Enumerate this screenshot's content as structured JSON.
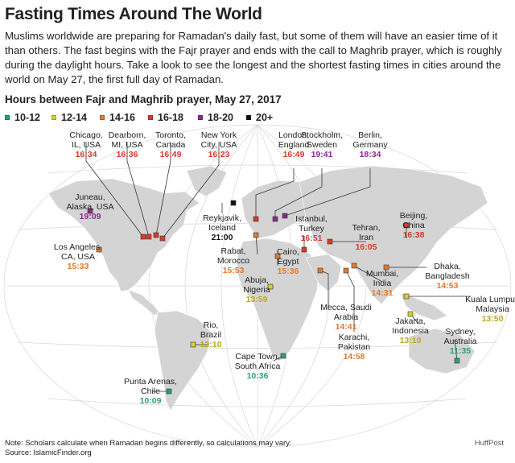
{
  "title": "Fasting Times Around The World",
  "intro": "Muslims worldwide are preparing for Ramadan's daily fast, but some of them will have an easier time of it than others. The fast begins with the Fajr prayer and ends with the call to Maghrib prayer, which is roughly during the daylight hours. Take a look to see the longest and the shortest fasting times in cities around the world on May 27, the first full day of Ramadan.",
  "subhead": "Hours between Fajr and Maghrib prayer, May 27, 2017",
  "legend": [
    {
      "label": "10-12",
      "color": "#2aa07a"
    },
    {
      "label": "12-14",
      "color": "#d6d02a"
    },
    {
      "label": "14-16",
      "color": "#e07b2f"
    },
    {
      "label": "16-18",
      "color": "#d93a2b"
    },
    {
      "label": "18-20",
      "color": "#8a2b8f"
    },
    {
      "label": "20+",
      "color": "#111111"
    }
  ],
  "cities": [
    {
      "name": "Chicago,",
      "name2": "IL, USA",
      "time": "16:34",
      "color": "#d93a2b"
    },
    {
      "name": "Dearborn,",
      "name2": "MI, USA",
      "time": "16:36",
      "color": "#d93a2b"
    },
    {
      "name": "Toronto,",
      "name2": "Canada",
      "time": "16:49",
      "color": "#d93a2b"
    },
    {
      "name": "New York",
      "name2": "City, USA",
      "time": "16:23",
      "color": "#d93a2b"
    },
    {
      "name": "Juneau,",
      "name2": "Alaska, USA",
      "time": "19:09",
      "color": "#8a2b8f"
    },
    {
      "name": "Los Angeles,",
      "name2": "CA, USA",
      "time": "15:33",
      "color": "#e07b2f"
    },
    {
      "name": "London,",
      "name2": "England",
      "time": "16:49",
      "color": "#d93a2b"
    },
    {
      "name": "Stockholm,",
      "name2": "Sweden",
      "time": "19:41",
      "color": "#8a2b8f"
    },
    {
      "name": "Berlin,",
      "name2": "Germany",
      "time": "18:34",
      "color": "#8a2b8f"
    },
    {
      "name": "Reykjavik,",
      "name2": "Iceland",
      "time": "21:00",
      "color": "#111111"
    },
    {
      "name": "Istanbul,",
      "name2": "Turkey",
      "time": "16:51",
      "color": "#d93a2b"
    },
    {
      "name": "Tehran,",
      "name2": "Iran",
      "time": "16:05",
      "color": "#d93a2b"
    },
    {
      "name": "Beijing,",
      "name2": "China",
      "time": "16:38",
      "color": "#d93a2b"
    },
    {
      "name": "Rabat,",
      "name2": "Morocco",
      "time": "15:53",
      "color": "#e07b2f"
    },
    {
      "name": "Cairo,",
      "name2": "Egypt",
      "time": "15:36",
      "color": "#e07b2f"
    },
    {
      "name": "Dhaka,",
      "name2": "Bangladesh",
      "time": "14:53",
      "color": "#e07b2f"
    },
    {
      "name": "Mumbai,",
      "name2": "India",
      "time": "14:31",
      "color": "#e07b2f"
    },
    {
      "name": "Kuala Lumpur,",
      "name2": "Malaysia",
      "time": "13:50",
      "color": "#d6d02a"
    },
    {
      "name": "Abuja,",
      "name2": "Nigeria",
      "time": "13:59",
      "color": "#d6d02a"
    },
    {
      "name": "Mecca, Saudi",
      "name2": "Arabia",
      "time": "14:41",
      "color": "#e07b2f"
    },
    {
      "name": "Karachi,",
      "name2": "Pakistan",
      "time": "14:58",
      "color": "#e07b2f"
    },
    {
      "name": "Jakarta,",
      "name2": "Indonesia",
      "time": "13:10",
      "color": "#d6d02a"
    },
    {
      "name": "Sydney,",
      "name2": "Australia",
      "time": "11:35",
      "color": "#2aa07a"
    },
    {
      "name": "Rio,",
      "name2": "Brazil",
      "time": "12:10",
      "color": "#d6d02a"
    },
    {
      "name": "Cape Town,",
      "name2": "South Africa",
      "time": "10:36",
      "color": "#2aa07a"
    },
    {
      "name": "Punta Arenas,",
      "name2": "Chile",
      "time": "10:09",
      "color": "#2aa07a"
    }
  ],
  "note1": "Note: Scholars calculate when Ramadan begins differently, so calculations may vary.",
  "note2": "Source: IslamicFinder.org",
  "brand": "HuffPost"
}
